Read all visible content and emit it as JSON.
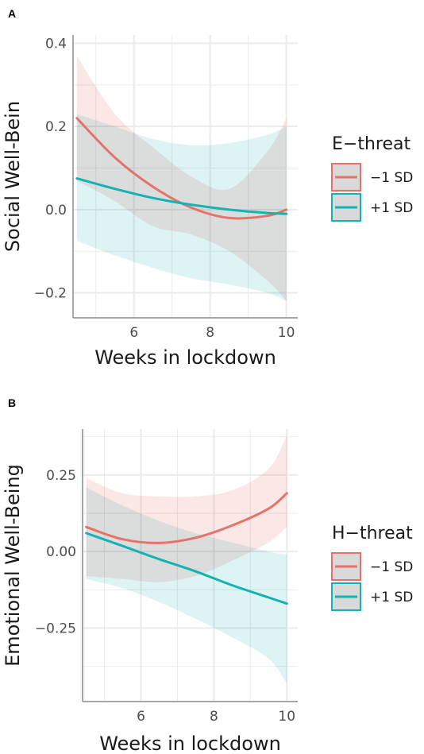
{
  "chart_data": [
    {
      "panel": "A",
      "type": "line",
      "xlabel": "Weeks in lockdown",
      "ylabel": "Social Well-Bein",
      "xlim": [
        4.4,
        10.3
      ],
      "ylim": [
        -0.26,
        0.42
      ],
      "xticks": [
        6,
        8,
        10
      ],
      "xtick_labels": [
        "6",
        "8",
        "10"
      ],
      "yticks": [
        -0.2,
        0.0,
        0.2,
        0.4
      ],
      "ytick_labels": [
        "−0.2",
        "0.0",
        "0.2",
        "0.4"
      ],
      "legend_title": "E−threat",
      "legend_position": "right",
      "grid": true,
      "series": [
        {
          "name": "−1 SD",
          "color": "#e3736b",
          "fill": "#fbe1e1",
          "x": [
            4.5,
            5.5,
            6.5,
            7.5,
            8.5,
            9.5,
            10
          ],
          "y": [
            0.22,
            0.125,
            0.055,
            0.005,
            -0.02,
            -0.015,
            0.0
          ],
          "ci_lower": [
            0.07,
            0.02,
            -0.04,
            -0.06,
            -0.1,
            -0.17,
            -0.22
          ],
          "ci_upper": [
            0.37,
            0.23,
            0.15,
            0.08,
            0.05,
            0.14,
            0.22
          ]
        },
        {
          "name": "+1 SD",
          "color": "#14b3b3",
          "fill": "#d6f1f1",
          "x": [
            4.5,
            5.5,
            6.5,
            7.5,
            8.5,
            9.5,
            10
          ],
          "y": [
            0.075,
            0.05,
            0.028,
            0.012,
            0.0,
            -0.008,
            -0.01
          ],
          "ci_lower": [
            -0.075,
            -0.11,
            -0.14,
            -0.165,
            -0.18,
            -0.2,
            -0.22
          ],
          "ci_upper": [
            0.23,
            0.2,
            0.17,
            0.155,
            0.16,
            0.18,
            0.2
          ]
        }
      ]
    },
    {
      "panel": "B",
      "type": "line",
      "xlabel": "Weeks in lockdown",
      "ylabel": "Emotional Well-Being",
      "xlim": [
        4.4,
        10.3
      ],
      "ylim": [
        -0.49,
        0.4
      ],
      "xticks": [
        6,
        8,
        10
      ],
      "xtick_labels": [
        "6",
        "8",
        "10"
      ],
      "yticks": [
        -0.25,
        0.0,
        0.25
      ],
      "ytick_labels": [
        "−0.25",
        "0.00",
        "0.25"
      ],
      "legend_title": "H−threat",
      "legend_position": "right",
      "grid": true,
      "series": [
        {
          "name": "−1 SD",
          "color": "#e3736b",
          "fill": "#fbe1e1",
          "x": [
            4.5,
            5.5,
            6.5,
            7.5,
            8.5,
            9.5,
            10
          ],
          "y": [
            0.08,
            0.04,
            0.028,
            0.045,
            0.085,
            0.14,
            0.19
          ],
          "ci_lower": [
            -0.08,
            -0.09,
            -0.1,
            -0.08,
            -0.03,
            0.03,
            0.08
          ],
          "ci_upper": [
            0.24,
            0.19,
            0.18,
            0.18,
            0.2,
            0.27,
            0.38
          ]
        },
        {
          "name": "+1 SD",
          "color": "#14b3b3",
          "fill": "#d6f1f1",
          "x": [
            4.5,
            5.5,
            6.5,
            7.5,
            8.5,
            9.5,
            10
          ],
          "y": [
            0.06,
            0.018,
            -0.025,
            -0.065,
            -0.11,
            -0.15,
            -0.17
          ],
          "ci_lower": [
            -0.09,
            -0.12,
            -0.165,
            -0.22,
            -0.28,
            -0.35,
            -0.43
          ],
          "ci_upper": [
            0.21,
            0.15,
            0.1,
            0.06,
            0.03,
            0.0,
            -0.01
          ]
        }
      ]
    }
  ]
}
